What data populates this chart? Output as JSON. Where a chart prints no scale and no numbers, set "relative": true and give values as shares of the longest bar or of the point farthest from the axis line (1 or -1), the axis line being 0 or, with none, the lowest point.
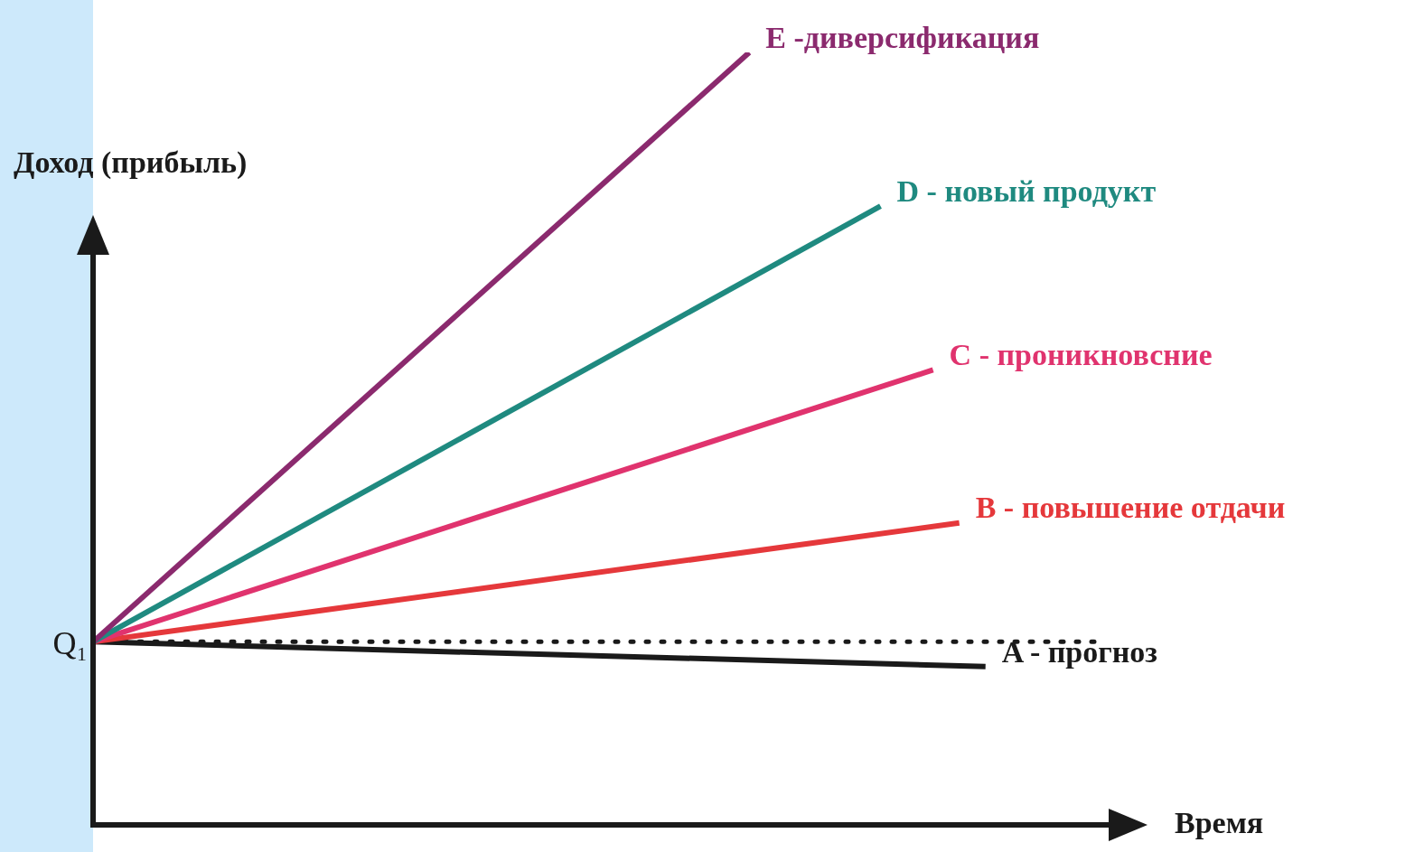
{
  "chart_data": {
    "type": "line",
    "relative": true,
    "xlabel": "Время",
    "ylabel": "Доход (прибыль)",
    "legend": false,
    "marker": "none",
    "line_style": "solid",
    "categories": [
      null,
      null,
      null,
      null,
      null,
      null,
      null,
      null,
      null,
      null,
      null,
      null,
      null,
      null,
      null,
      null,
      null,
      null,
      null,
      null,
      null,
      null,
      null,
      null,
      null,
      null,
      null,
      null,
      null,
      null,
      null,
      null,
      null,
      null,
      null,
      null,
      null,
      null,
      null,
      null,
      null
    ],
    "series": [
      {
        "name": "E -диверсификация",
        "color": "#8b2a6e",
        "values": [
          0.237,
          null,
          null,
          null,
          null,
          null,
          null,
          null,
          null,
          null,
          null,
          null,
          null,
          null,
          null,
          null,
          null,
          null,
          null,
          null,
          null,
          null,
          null,
          null,
          null,
          1,
          null,
          null,
          null,
          null,
          null,
          null,
          null,
          null,
          null,
          null,
          null,
          null,
          null,
          null,
          null
        ]
      },
      {
        "name": "D - новый продукт",
        "color": "#1f8a80",
        "values": [
          0.237,
          null,
          null,
          null,
          null,
          null,
          null,
          null,
          null,
          null,
          null,
          null,
          null,
          null,
          null,
          null,
          null,
          null,
          null,
          null,
          null,
          null,
          null,
          null,
          null,
          null,
          null,
          null,
          null,
          null,
          0.801,
          null,
          null,
          null,
          null,
          null,
          null,
          null,
          null,
          null,
          null
        ]
      },
      {
        "name": "C - проникновсние",
        "color": "#e0336e",
        "values": [
          0.237,
          null,
          null,
          null,
          null,
          null,
          null,
          null,
          null,
          null,
          null,
          null,
          null,
          null,
          null,
          null,
          null,
          null,
          null,
          null,
          null,
          null,
          null,
          null,
          null,
          null,
          null,
          null,
          null,
          null,
          null,
          null,
          0.589,
          null,
          null,
          null,
          null,
          null,
          null,
          null,
          null
        ]
      },
      {
        "name": "B - повышение отдачи",
        "color": "#e5383b",
        "values": [
          0.237,
          null,
          null,
          null,
          null,
          null,
          null,
          null,
          null,
          null,
          null,
          null,
          null,
          null,
          null,
          null,
          null,
          null,
          null,
          null,
          null,
          null,
          null,
          null,
          null,
          null,
          null,
          null,
          null,
          null,
          null,
          null,
          null,
          0.391,
          null,
          null,
          null,
          null,
          null,
          null,
          null
        ]
      },
      {
        "name": "A - прогноз",
        "color": "#1a1a1a",
        "values": [
          0.237,
          null,
          null,
          null,
          null,
          null,
          null,
          null,
          null,
          null,
          null,
          null,
          null,
          null,
          null,
          null,
          null,
          null,
          null,
          null,
          null,
          null,
          null,
          null,
          null,
          null,
          null,
          null,
          null,
          null,
          null,
          null,
          null,
          null,
          0.205,
          null,
          null,
          null,
          null,
          null,
          null
        ]
      }
    ],
    "ref_lines": [
      {
        "axis": "y",
        "value": 0.237,
        "line_style": "dotted",
        "color": "#1a1a1a"
      }
    ],
    "annotations": [
      "Q₁"
    ]
  }
}
